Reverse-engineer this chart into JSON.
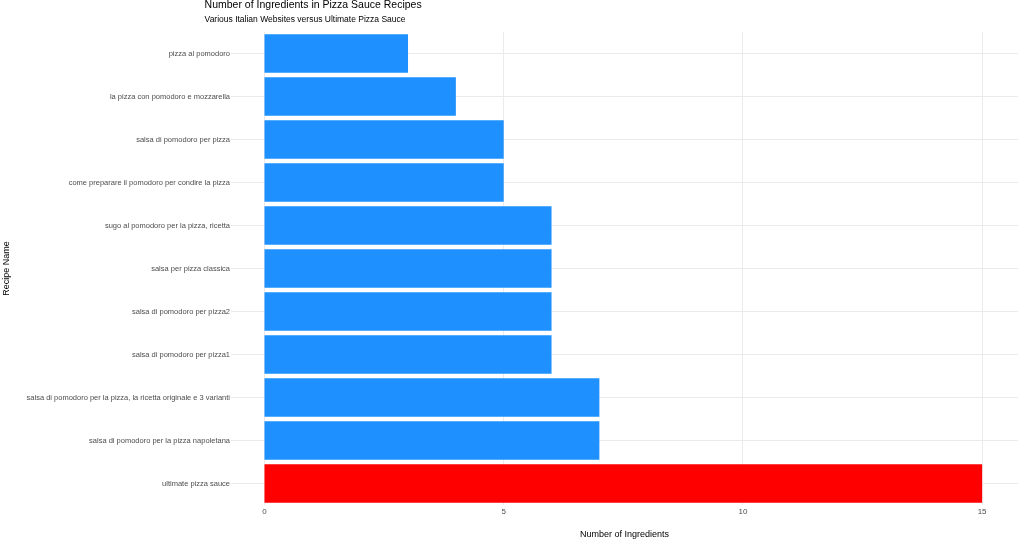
{
  "chart_data": {
    "type": "bar",
    "orientation": "horizontal",
    "title": "Number of Ingredients in Pizza Sauce Recipes",
    "subtitle": "Various Italian Websites versus Ultimate Pizza Sauce",
    "xlabel": "Number of Ingredients",
    "ylabel": "Recipe Name",
    "categories": [
      "pizza al pomodoro",
      "la pizza con pomodoro e mozzarella",
      "salsa di pomodoro per pizza",
      "come preparare il pomodoro per condire la pizza",
      "sugo al pomodoro per la pizza, ricetta",
      "salsa per pizza classica",
      "salsa di pomodoro per pizza2",
      "salsa di pomodoro per pizza1",
      "salsa di pomodoro per la pizza, la ricetta originale e 3 varianti",
      "salsa di pomodoro per la pizza napoletana",
      "ultimate pizza sauce"
    ],
    "values": [
      3,
      4,
      5,
      5,
      6,
      6,
      6,
      6,
      7,
      7,
      15
    ],
    "colors": [
      "#1e90ff",
      "#1e90ff",
      "#1e90ff",
      "#1e90ff",
      "#1e90ff",
      "#1e90ff",
      "#1e90ff",
      "#1e90ff",
      "#1e90ff",
      "#1e90ff",
      "#ff0000"
    ],
    "xlim": [
      -0.7,
      15.75
    ],
    "xticks": [
      0,
      5,
      10,
      15
    ],
    "grid": true,
    "legend": false
  }
}
